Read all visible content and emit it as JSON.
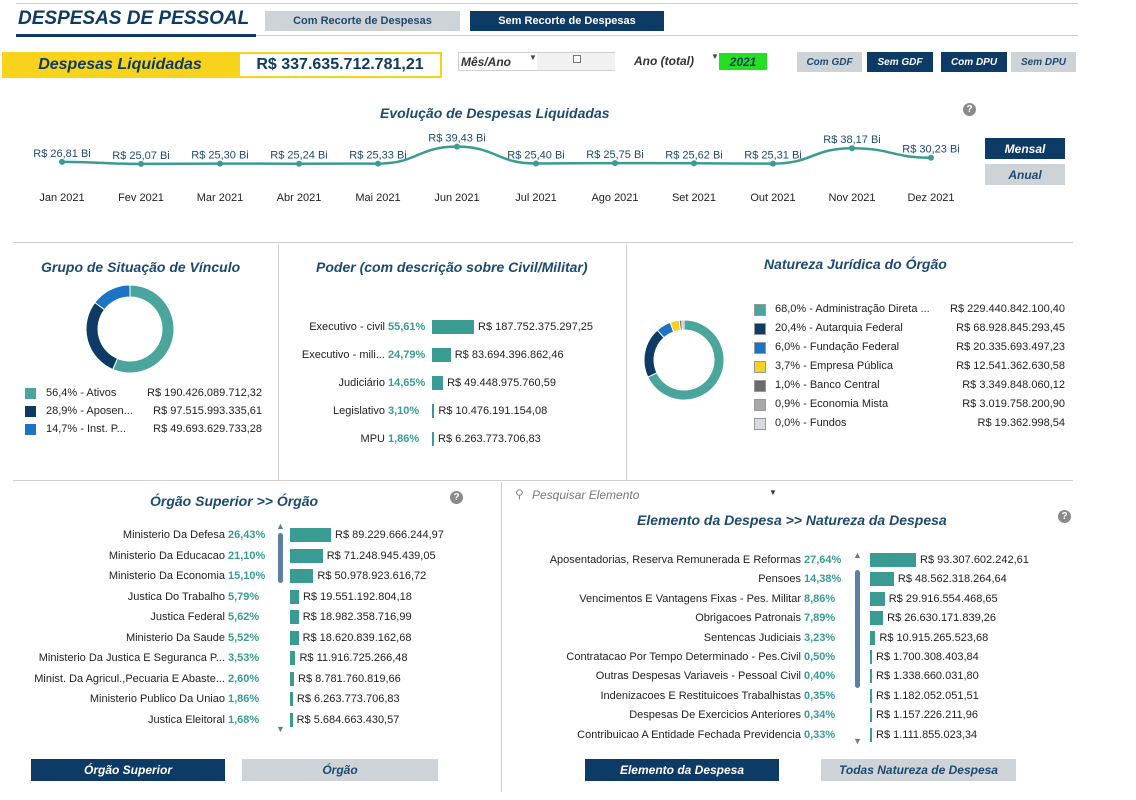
{
  "header": {
    "title": "DESPESAS DE PESSOAL",
    "tab_with": "Com Recorte de Despesas",
    "tab_without": "Sem Recorte de Despesas"
  },
  "kpi": {
    "label": "Despesas Liquidadas",
    "value": "R$ 337.635.712.781,21"
  },
  "filters": {
    "month_label": "Mês/Ano",
    "year_label": "Ano (total)",
    "year_value": "2021",
    "gdf_with": "Com GDF",
    "gdf_without": "Sem GDF",
    "dpu_with": "Com DPU",
    "dpu_without": "Sem DPU"
  },
  "evolution": {
    "title": "Evolução de Despesas Liquidadas",
    "btn_monthly": "Mensal",
    "btn_annual": "Anual"
  },
  "chart_data": {
    "type": "line",
    "title": "Evolução de Despesas Liquidadas",
    "categories": [
      "Jan 2021",
      "Fev 2021",
      "Mar 2021",
      "Abr 2021",
      "Mai 2021",
      "Jun 2021",
      "Jul 2021",
      "Ago 2021",
      "Set 2021",
      "Out 2021",
      "Nov 2021",
      "Dez 2021"
    ],
    "values": [
      26.81,
      25.07,
      25.3,
      25.24,
      25.33,
      39.43,
      25.4,
      25.75,
      25.62,
      25.31,
      38.17,
      30.23
    ],
    "labels": [
      "R$ 26,81 Bi",
      "R$ 25,07 Bi",
      "R$ 25,30 Bi",
      "R$ 25,24 Bi",
      "R$ 25,33 Bi",
      "R$ 39,43 Bi",
      "R$ 25,40 Bi",
      "R$ 25,75 Bi",
      "R$ 25,62 Bi",
      "R$ 25,31 Bi",
      "R$ 38,17 Bi",
      "R$ 30,23 Bi"
    ],
    "color": "#3a9b93"
  },
  "vinculo": {
    "title": "Grupo de Situação de Vínculo",
    "items": [
      {
        "label": "56,4% - Ativos",
        "value": "R$ 190.426.089.712,32",
        "color": "#4aa59c",
        "pct": 56.4
      },
      {
        "label": "28,9% - Aposen...",
        "value": "R$ 97.515.993.335,61",
        "color": "#0e3a66",
        "pct": 28.9
      },
      {
        "label": "14,7% - Inst. P...",
        "value": "R$ 49.693.629.733,28",
        "color": "#1b74c4",
        "pct": 14.7
      }
    ]
  },
  "poder": {
    "title": "Poder (com descrição sobre Civil/Militar)",
    "items": [
      {
        "label": "Executivo - civil",
        "pct": "55,61%",
        "share": 55.61,
        "value": "R$ 187.752.375.297,25"
      },
      {
        "label": "Executivo - mili...",
        "pct": "24,79%",
        "share": 24.79,
        "value": "R$ 83.694.396.862,46"
      },
      {
        "label": "Judiciário",
        "pct": "14,65%",
        "share": 14.65,
        "value": "R$ 49.448.975.760,59"
      },
      {
        "label": "Legislativo",
        "pct": "3,10%",
        "share": 3.1,
        "value": "R$ 10.476.191.154,08"
      },
      {
        "label": "MPU",
        "pct": "1,86%",
        "share": 1.86,
        "value": "R$ 6.263.773.706,83"
      }
    ]
  },
  "natureza": {
    "title": "Natureza Jurídica do Órgão",
    "items": [
      {
        "label": "68,0% - Administração Direta ...",
        "value": "R$ 229.440.842.100,40",
        "color": "#4aa59c",
        "pct": 68.0
      },
      {
        "label": "20,4% - Autarquia Federal",
        "value": "R$ 68.928.845.293,45",
        "color": "#0e3a66",
        "pct": 20.4
      },
      {
        "label": "6,0% - Fundação Federal",
        "value": "R$ 20.335.693.497,23",
        "color": "#1b74c4",
        "pct": 6.0
      },
      {
        "label": "3,7% - Empresa Pública",
        "value": "R$ 12.541.362.630,58",
        "color": "#f2d21b",
        "pct": 3.7
      },
      {
        "label": "1,0% - Banco Central",
        "value": "R$ 3.349.848.060,12",
        "color": "#6b6b6b",
        "pct": 1.0
      },
      {
        "label": "0,9% - Economia Mista",
        "value": "R$ 3.019.758.200,90",
        "color": "#a9a9a9",
        "pct": 0.9
      },
      {
        "label": "0,0% - Fundos",
        "value": "R$ 19.362.998,54",
        "color": "#d4dde2",
        "pct": 0.0
      }
    ]
  },
  "orgao": {
    "title": "Órgão Superior >> Órgão",
    "items": [
      {
        "label": "Ministerio Da Defesa",
        "pct": "26,43%",
        "share": 26.43,
        "value": "R$ 89.229.666.244,97"
      },
      {
        "label": "Ministerio Da Educacao",
        "pct": "21,10%",
        "share": 21.1,
        "value": "R$ 71.248.945.439,05"
      },
      {
        "label": "Ministerio Da Economia",
        "pct": "15,10%",
        "share": 15.1,
        "value": "R$ 50.978.923.616,72"
      },
      {
        "label": "Justica Do Trabalho",
        "pct": "5,79%",
        "share": 5.79,
        "value": "R$ 19.551.192.804,18"
      },
      {
        "label": "Justica Federal",
        "pct": "5,62%",
        "share": 5.62,
        "value": "R$ 18.982.358.716,99"
      },
      {
        "label": "Ministerio Da Saude",
        "pct": "5,52%",
        "share": 5.52,
        "value": "R$ 18.620.839.162,68"
      },
      {
        "label": "Ministerio Da Justica E Seguranca P...",
        "pct": "3,53%",
        "share": 3.53,
        "value": "R$ 11.916.725.266,48"
      },
      {
        "label": "Minist. Da Agricul.,Pecuaria E Abaste...",
        "pct": "2,60%",
        "share": 2.6,
        "value": "R$ 8.781.760.819,66"
      },
      {
        "label": "Ministerio Publico Da Uniao",
        "pct": "1,86%",
        "share": 1.86,
        "value": "R$ 6.263.773.706,83"
      },
      {
        "label": "Justica Eleitoral",
        "pct": "1,68%",
        "share": 1.68,
        "value": "R$ 5.684.663.430,57"
      }
    ],
    "btn_superior": "Órgão Superior",
    "btn_orgao": "Órgão"
  },
  "elemento": {
    "search_placeholder": "Pesquisar Elemento",
    "title": "Elemento da Despesa >> Natureza da Despesa",
    "items": [
      {
        "label": "Aposentadorias, Reserva Remunerada E Reformas",
        "pct": "27,64%",
        "share": 27.64,
        "value": "R$ 93.307.602.242,61"
      },
      {
        "label": "Pensoes",
        "pct": "14,38%",
        "share": 14.38,
        "value": "R$ 48.562.318.264,64"
      },
      {
        "label": "Vencimentos E Vantagens Fixas - Pes. Militar",
        "pct": "8,86%",
        "share": 8.86,
        "value": "R$ 29.916.554.468,65"
      },
      {
        "label": "Obrigacoes Patronais",
        "pct": "7,89%",
        "share": 7.89,
        "value": "R$ 26.630.171.839,26"
      },
      {
        "label": "Sentencas Judiciais",
        "pct": "3,23%",
        "share": 3.23,
        "value": "R$ 10.915.265.523,68"
      },
      {
        "label": "Contratacao Por Tempo Determinado - Pes.Civil",
        "pct": "0,50%",
        "share": 0.5,
        "value": "R$ 1.700.308.403,84"
      },
      {
        "label": "Outras Despesas Variaveis - Pessoal Civil",
        "pct": "0,40%",
        "share": 0.4,
        "value": "R$ 1.338.660.031,80"
      },
      {
        "label": "Indenizacoes E Restituicoes Trabalhistas",
        "pct": "0,35%",
        "share": 0.35,
        "value": "R$ 1.182.052.051,51"
      },
      {
        "label": "Despesas De Exercicios Anteriores",
        "pct": "0,34%",
        "share": 0.34,
        "value": "R$ 1.157.226.211,96"
      },
      {
        "label": "Contribuicao A Entidade Fechada Previdencia",
        "pct": "0,33%",
        "share": 0.33,
        "value": "R$ 1.111.855.023,34"
      }
    ],
    "btn_elemento": "Elemento da Despesa",
    "btn_natureza": "Todas Natureza de Despesa"
  },
  "help_glyph": "?"
}
